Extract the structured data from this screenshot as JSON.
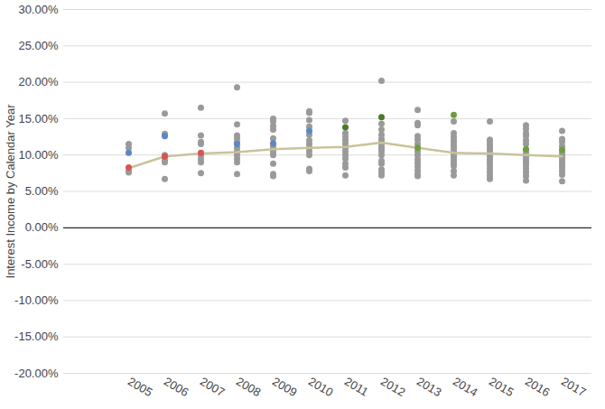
{
  "chart_data": {
    "type": "scatter",
    "y_label": "Interest Income by Calendar Year",
    "categories": [
      "2005",
      "2006",
      "2007",
      "2008",
      "2009",
      "2010",
      "2011",
      "2012",
      "2013",
      "2014",
      "2015",
      "2016",
      "2017"
    ],
    "series": [
      {
        "type": "scatter",
        "marker": "circle",
        "color": "#9a9a9a",
        "values": [
          [
            11.5,
            11.0,
            7.8,
            7.6
          ],
          [
            15.7,
            12.9,
            10.0,
            9.3,
            9.0,
            6.7
          ],
          [
            16.5,
            12.7,
            11.8,
            11.5,
            10.0,
            9.5,
            9.0,
            7.5
          ],
          [
            19.3,
            14.2,
            12.7,
            12.3,
            11.8,
            11.0,
            10.5,
            10.0,
            9.5,
            9.0,
            7.4
          ],
          [
            15.0,
            14.6,
            14.0,
            13.5,
            12.3,
            11.2,
            10.8,
            10.4,
            10.0,
            8.8,
            7.4,
            7.1
          ],
          [
            16.0,
            15.8,
            14.8,
            13.9,
            12.8,
            12.0,
            11.5,
            11.0,
            10.5,
            10.0,
            8.1,
            7.8
          ],
          [
            14.7,
            13.0,
            12.5,
            12.0,
            11.5,
            11.0,
            10.5,
            10.0,
            9.5,
            8.8,
            8.3,
            7.2
          ],
          [
            20.2,
            14.3,
            13.5,
            12.8,
            12.2,
            11.8,
            11.3,
            10.9,
            10.5,
            10.0,
            9.2,
            8.8,
            8.0,
            7.6,
            7.2
          ],
          [
            16.2,
            14.4,
            14.1,
            12.6,
            12.1,
            11.5,
            10.5,
            10.0,
            9.4,
            8.9,
            8.4,
            7.9,
            7.4,
            7.1
          ],
          [
            14.6,
            13.0,
            12.5,
            12.0,
            11.6,
            11.2,
            10.8,
            10.4,
            10.0,
            9.7,
            9.3,
            8.9,
            8.5,
            7.8,
            7.2
          ],
          [
            14.6,
            12.1,
            11.8,
            11.4,
            11.0,
            10.6,
            10.2,
            9.8,
            9.4,
            9.0,
            8.6,
            8.1,
            7.6,
            7.1,
            6.7
          ],
          [
            14.1,
            13.6,
            13.0,
            12.6,
            12.0,
            11.5,
            10.6,
            10.2,
            9.8,
            9.4,
            9.0,
            8.6,
            8.1,
            7.6,
            7.1,
            6.5
          ],
          [
            13.3,
            12.2,
            11.8,
            11.2,
            10.3,
            9.9,
            9.5,
            9.1,
            8.7,
            8.3,
            7.8,
            7.3,
            6.4
          ]
        ]
      },
      {
        "type": "line",
        "line_style": "solid",
        "color": "#c9c39a",
        "values": [
          8.2,
          9.8,
          10.2,
          10.4,
          10.8,
          11.0,
          11.1,
          11.7,
          11.0,
          10.3,
          10.2,
          10.0,
          9.8
        ]
      },
      {
        "type": "scatter",
        "marker": "circle",
        "color": "#5a87c5",
        "values": [
          10.3,
          12.6,
          null,
          11.5,
          11.6,
          13.3,
          null,
          null,
          null,
          null,
          null,
          null,
          null
        ]
      },
      {
        "type": "scatter",
        "marker": "circle",
        "color": "#d9534f",
        "values": [
          8.3,
          9.8,
          10.3,
          null,
          null,
          null,
          null,
          null,
          null,
          null,
          null,
          null,
          null
        ]
      },
      {
        "type": "scatter",
        "marker": "circle",
        "color": "#4a7a28",
        "values": [
          null,
          null,
          null,
          null,
          null,
          null,
          13.8,
          15.2,
          null,
          null,
          null,
          null,
          null
        ]
      },
      {
        "type": "scatter",
        "marker": "circle",
        "color": "#6e9e3c",
        "values": [
          null,
          null,
          null,
          null,
          null,
          null,
          null,
          null,
          11.0,
          15.5,
          null,
          10.8,
          10.7
        ]
      }
    ],
    "ylim": [
      -20,
      30
    ],
    "yticks": [
      {
        "value": -20,
        "label": "-20.00%"
      },
      {
        "value": -15,
        "label": "-15.00%"
      },
      {
        "value": -10,
        "label": "-10.00%"
      },
      {
        "value": -5,
        "label": "-5.00%"
      },
      {
        "value": 0,
        "label": "0.00%"
      },
      {
        "value": 5,
        "label": "5.00%"
      },
      {
        "value": 10,
        "label": "10.00%"
      },
      {
        "value": 15,
        "label": "15.00%"
      },
      {
        "value": 20,
        "label": "20.00%"
      },
      {
        "value": 25,
        "label": "25.00%"
      },
      {
        "value": 30,
        "label": "30.00%"
      }
    ],
    "grid": true
  }
}
